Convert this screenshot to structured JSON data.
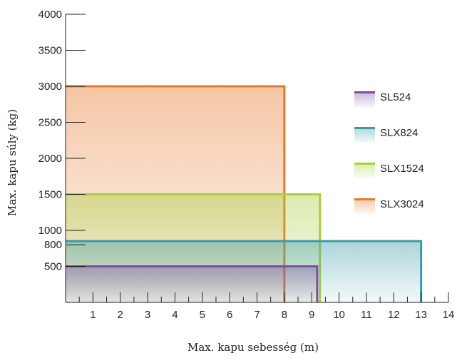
{
  "chart_data": {
    "type": "area",
    "title": "",
    "xlabel": "Max. kapu sebesség (m)",
    "ylabel": "Max. kapu súly (kg)",
    "xlim": [
      0,
      14
    ],
    "ylim": [
      0,
      4000
    ],
    "x_ticks": [
      1,
      2,
      3,
      4,
      5,
      6,
      7,
      8,
      9,
      10,
      11,
      12,
      13,
      14
    ],
    "y_ticks": [
      500,
      800,
      1000,
      1500,
      2000,
      2500,
      3000,
      3500,
      4000
    ],
    "legend_position": "right",
    "grid": false,
    "series": [
      {
        "name": "SL524",
        "x_max": 9.2,
        "y_max": 500,
        "color": "#7b4fa0"
      },
      {
        "name": "SLX824",
        "x_max": 13.0,
        "y_max": 850,
        "color": "#3c9aa6"
      },
      {
        "name": "SLX1524",
        "x_max": 9.3,
        "y_max": 1500,
        "color": "#a8cf3c"
      },
      {
        "name": "SLX3024",
        "x_max": 8.0,
        "y_max": 3000,
        "color": "#e8782a"
      }
    ]
  }
}
